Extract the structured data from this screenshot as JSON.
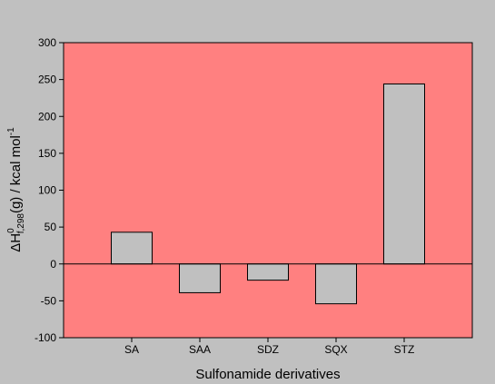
{
  "chart_data": {
    "type": "bar",
    "title": "",
    "xlabel": "Sulfonamide derivatives",
    "ylabel": {
      "prefix": "ΔH",
      "superscript": "0",
      "subscript": "f,298",
      "middle": "(g) / kcal mol",
      "unit_superscript": "-1"
    },
    "categories": [
      "SA",
      "SAA",
      "SDZ",
      "SQX",
      "STZ"
    ],
    "values": [
      43,
      -39,
      -22,
      -54,
      244
    ],
    "ylim": [
      -100,
      300
    ],
    "yticks": [
      -100,
      -50,
      0,
      50,
      100,
      150,
      200,
      250,
      300
    ],
    "grid": false,
    "legend": "none",
    "colors": {
      "background": "#c0c0c0",
      "plot_area": "#ff8080",
      "bar_fill": "#c0c0c0",
      "bar_stroke": "#000000",
      "axis": "#000000"
    }
  }
}
